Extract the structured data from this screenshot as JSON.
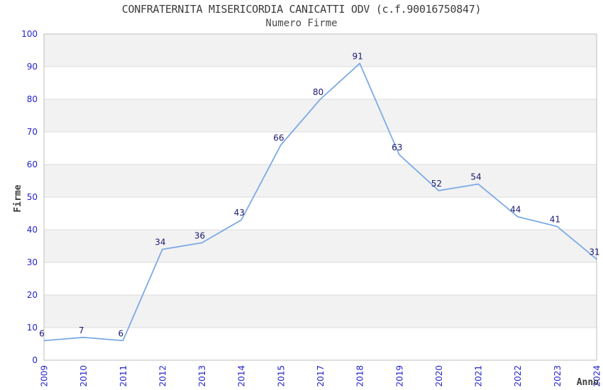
{
  "chart_data": {
    "type": "line",
    "title": "CONFRATERNITA MISERICORDIA CANICATTI ODV (c.f.90016750847)",
    "subtitle": "Numero Firme",
    "xlabel": "Anno",
    "ylabel": "Firme",
    "categories": [
      "2009",
      "2010",
      "2011",
      "2012",
      "2013",
      "2014",
      "2015",
      "2017",
      "2018",
      "2019",
      "2020",
      "2021",
      "2022",
      "2023",
      "2024"
    ],
    "values": [
      6,
      7,
      6,
      34,
      36,
      43,
      66,
      80,
      91,
      63,
      52,
      54,
      44,
      41,
      31
    ],
    "yticks": [
      0,
      10,
      20,
      30,
      40,
      50,
      60,
      70,
      80,
      90,
      100
    ],
    "ylim": [
      0,
      100
    ],
    "grid": "horizontal",
    "banding": "alternating gray/white bands per 10 units, gray at top",
    "legend": "none",
    "data_labels": "value shown above each point",
    "x_tick_rotation": -90,
    "colors": {
      "line": "#7daae6",
      "data_label": "#191970",
      "tick_label": "#2323cc",
      "band_gray": "#f2f2f2",
      "band_white": "#ffffff",
      "gridline": "#dcdcdc",
      "plot_border": "#c8c8c8",
      "title_text": "#3c3c3c"
    }
  }
}
